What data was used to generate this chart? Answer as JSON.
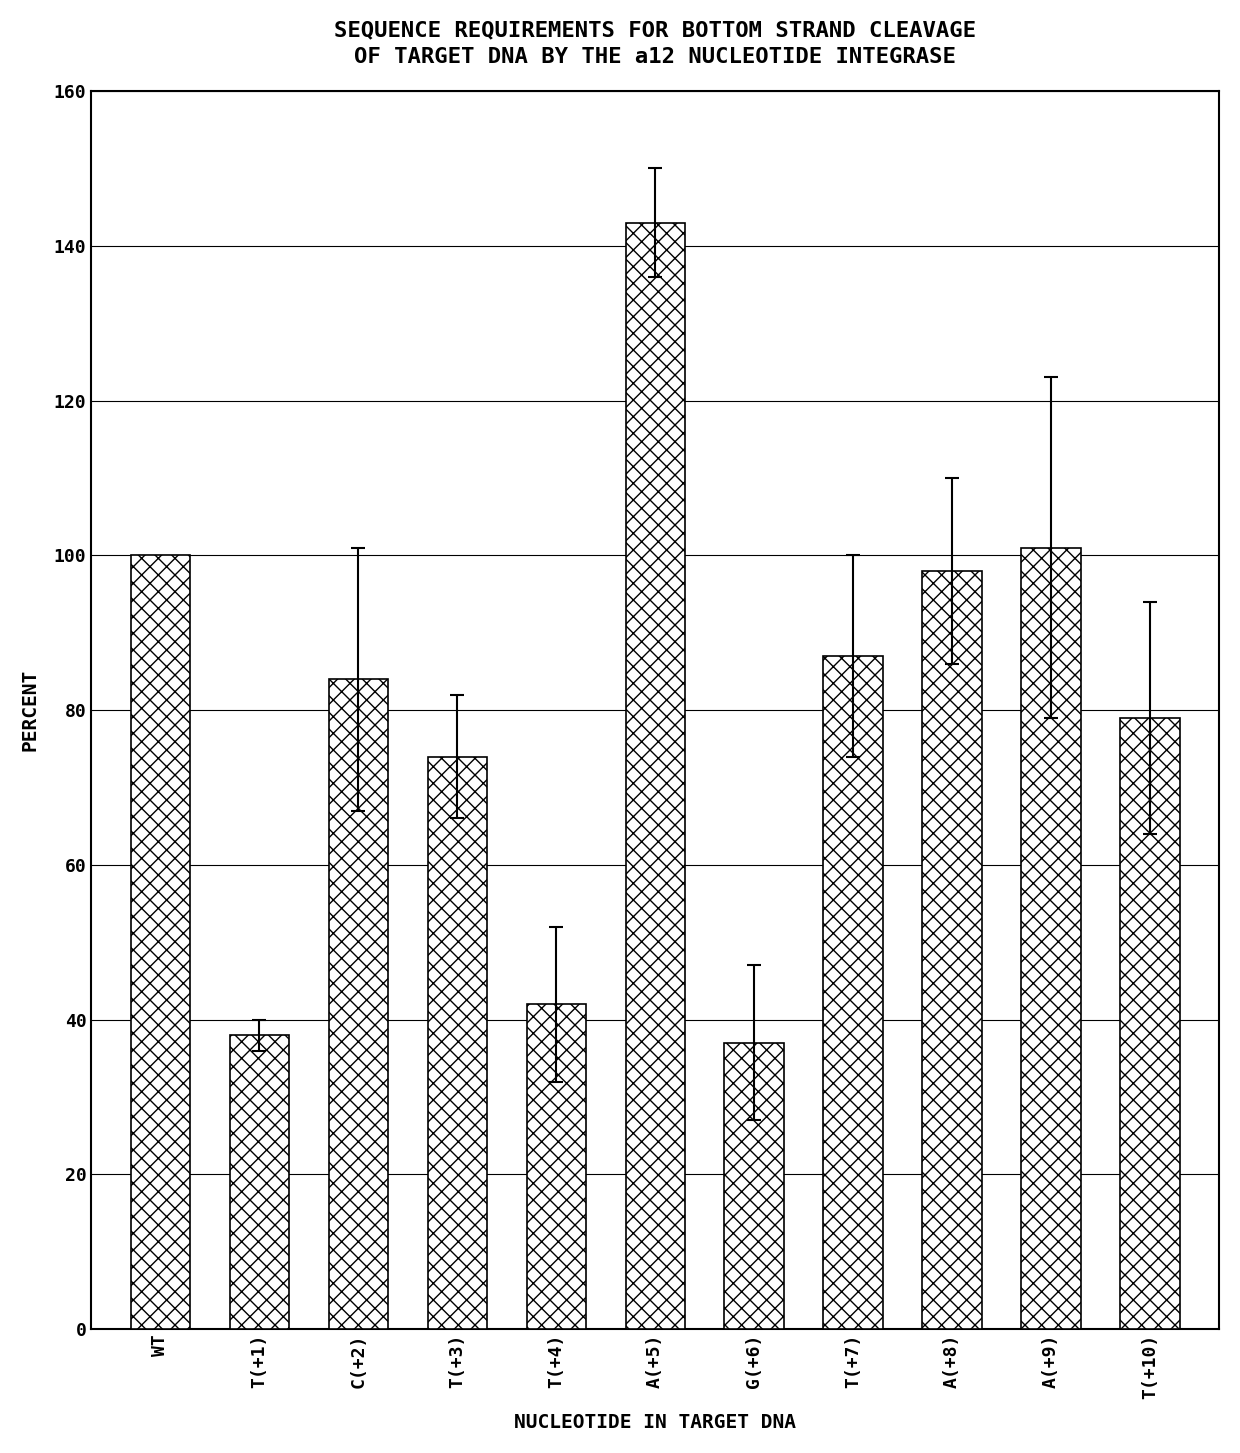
{
  "title_line1": "SEQUENCE REQUIREMENTS FOR BOTTOM STRAND CLEAVAGE",
  "title_line2": "OF TARGET DNA BY THE a12 NUCLEOTIDE INTEGRASE",
  "xlabel": "NUCLEOTIDE IN TARGET DNA",
  "ylabel": "PERCENT",
  "categories": [
    "WT",
    "T(+1)",
    "C(+2)",
    "T(+3)",
    "T(+4)",
    "A(+5)",
    "G(+6)",
    "T(+7)",
    "A(+8)",
    "A(+9)",
    "T(+10)"
  ],
  "values": [
    100,
    38,
    84,
    74,
    42,
    143,
    37,
    87,
    98,
    101,
    79
  ],
  "errors": [
    0,
    2,
    17,
    8,
    10,
    7,
    10,
    13,
    12,
    22,
    15
  ],
  "ylim": [
    0,
    160
  ],
  "yticks": [
    0,
    20,
    40,
    60,
    80,
    100,
    120,
    140,
    160
  ],
  "bar_color": "#ffffff",
  "bar_edgecolor": "#000000",
  "hatch": "xx",
  "figsize": [
    12.4,
    14.53
  ],
  "dpi": 100,
  "title_fontsize": 16,
  "axis_label_fontsize": 14,
  "tick_fontsize": 13,
  "bar_width": 0.6
}
